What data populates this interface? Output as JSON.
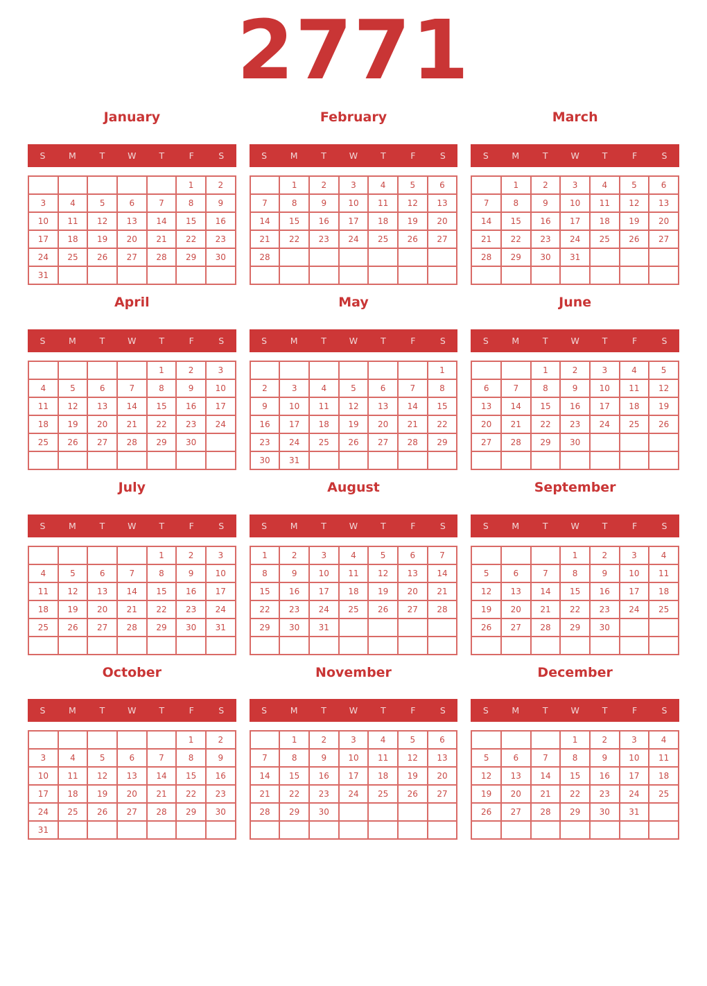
{
  "year_title": "2771",
  "weekdays": [
    "S",
    "M",
    "T",
    "W",
    "T",
    "F",
    "S"
  ],
  "colors": {
    "title_red": "#c93535",
    "weekday_bar_red": "#cd3737",
    "weekday_bar_text": "#f2d9d9",
    "grid_border": "#d96a66",
    "day_number_red": "#c94a46",
    "page_background": "#ffffff"
  },
  "months": [
    {
      "name": "January",
      "rows": [
        [
          "",
          "",
          "",
          "",
          "",
          "1",
          "2"
        ],
        [
          "3",
          "4",
          "5",
          "6",
          "7",
          "8",
          "9"
        ],
        [
          "10",
          "11",
          "12",
          "13",
          "14",
          "15",
          "16"
        ],
        [
          "17",
          "18",
          "19",
          "20",
          "21",
          "22",
          "23"
        ],
        [
          "24",
          "25",
          "26",
          "27",
          "28",
          "29",
          "30"
        ],
        [
          "31",
          "",
          "",
          "",
          "",
          "",
          ""
        ]
      ]
    },
    {
      "name": "February",
      "rows": [
        [
          "",
          "1",
          "2",
          "3",
          "4",
          "5",
          "6"
        ],
        [
          "7",
          "8",
          "9",
          "10",
          "11",
          "12",
          "13"
        ],
        [
          "14",
          "15",
          "16",
          "17",
          "18",
          "19",
          "20"
        ],
        [
          "21",
          "22",
          "23",
          "24",
          "25",
          "26",
          "27"
        ],
        [
          "28",
          "",
          "",
          "",
          "",
          "",
          ""
        ],
        [
          "",
          "",
          "",
          "",
          "",
          "",
          ""
        ]
      ]
    },
    {
      "name": "March",
      "rows": [
        [
          "",
          "1",
          "2",
          "3",
          "4",
          "5",
          "6"
        ],
        [
          "7",
          "8",
          "9",
          "10",
          "11",
          "12",
          "13"
        ],
        [
          "14",
          "15",
          "16",
          "17",
          "18",
          "19",
          "20"
        ],
        [
          "21",
          "22",
          "23",
          "24",
          "25",
          "26",
          "27"
        ],
        [
          "28",
          "29",
          "30",
          "31",
          "",
          "",
          ""
        ],
        [
          "",
          "",
          "",
          "",
          "",
          "",
          ""
        ]
      ]
    },
    {
      "name": "April",
      "rows": [
        [
          "",
          "",
          "",
          "",
          "1",
          "2",
          "3"
        ],
        [
          "4",
          "5",
          "6",
          "7",
          "8",
          "9",
          "10"
        ],
        [
          "11",
          "12",
          "13",
          "14",
          "15",
          "16",
          "17"
        ],
        [
          "18",
          "19",
          "20",
          "21",
          "22",
          "23",
          "24"
        ],
        [
          "25",
          "26",
          "27",
          "28",
          "29",
          "30",
          ""
        ],
        [
          "",
          "",
          "",
          "",
          "",
          "",
          ""
        ]
      ]
    },
    {
      "name": "May",
      "rows": [
        [
          "",
          "",
          "",
          "",
          "",
          "",
          "1"
        ],
        [
          "2",
          "3",
          "4",
          "5",
          "6",
          "7",
          "8"
        ],
        [
          "9",
          "10",
          "11",
          "12",
          "13",
          "14",
          "15"
        ],
        [
          "16",
          "17",
          "18",
          "19",
          "20",
          "21",
          "22"
        ],
        [
          "23",
          "24",
          "25",
          "26",
          "27",
          "28",
          "29"
        ],
        [
          "30",
          "31",
          "",
          "",
          "",
          "",
          ""
        ]
      ]
    },
    {
      "name": "June",
      "rows": [
        [
          "",
          "",
          "1",
          "2",
          "3",
          "4",
          "5"
        ],
        [
          "6",
          "7",
          "8",
          "9",
          "10",
          "11",
          "12"
        ],
        [
          "13",
          "14",
          "15",
          "16",
          "17",
          "18",
          "19"
        ],
        [
          "20",
          "21",
          "22",
          "23",
          "24",
          "25",
          "26"
        ],
        [
          "27",
          "28",
          "29",
          "30",
          "",
          "",
          ""
        ],
        [
          "",
          "",
          "",
          "",
          "",
          "",
          ""
        ]
      ]
    },
    {
      "name": "July",
      "rows": [
        [
          "",
          "",
          "",
          "",
          "1",
          "2",
          "3"
        ],
        [
          "4",
          "5",
          "6",
          "7",
          "8",
          "9",
          "10"
        ],
        [
          "11",
          "12",
          "13",
          "14",
          "15",
          "16",
          "17"
        ],
        [
          "18",
          "19",
          "20",
          "21",
          "22",
          "23",
          "24"
        ],
        [
          "25",
          "26",
          "27",
          "28",
          "29",
          "30",
          "31"
        ],
        [
          "",
          "",
          "",
          "",
          "",
          "",
          ""
        ]
      ]
    },
    {
      "name": "August",
      "rows": [
        [
          "1",
          "2",
          "3",
          "4",
          "5",
          "6",
          "7"
        ],
        [
          "8",
          "9",
          "10",
          "11",
          "12",
          "13",
          "14"
        ],
        [
          "15",
          "16",
          "17",
          "18",
          "19",
          "20",
          "21"
        ],
        [
          "22",
          "23",
          "24",
          "25",
          "26",
          "27",
          "28"
        ],
        [
          "29",
          "30",
          "31",
          "",
          "",
          "",
          ""
        ],
        [
          "",
          "",
          "",
          "",
          "",
          "",
          ""
        ]
      ]
    },
    {
      "name": "September",
      "rows": [
        [
          "",
          "",
          "",
          "1",
          "2",
          "3",
          "4"
        ],
        [
          "5",
          "6",
          "7",
          "8",
          "9",
          "10",
          "11"
        ],
        [
          "12",
          "13",
          "14",
          "15",
          "16",
          "17",
          "18"
        ],
        [
          "19",
          "20",
          "21",
          "22",
          "23",
          "24",
          "25"
        ],
        [
          "26",
          "27",
          "28",
          "29",
          "30",
          "",
          ""
        ],
        [
          "",
          "",
          "",
          "",
          "",
          "",
          ""
        ]
      ]
    },
    {
      "name": "October",
      "rows": [
        [
          "",
          "",
          "",
          "",
          "",
          "1",
          "2"
        ],
        [
          "3",
          "4",
          "5",
          "6",
          "7",
          "8",
          "9"
        ],
        [
          "10",
          "11",
          "12",
          "13",
          "14",
          "15",
          "16"
        ],
        [
          "17",
          "18",
          "19",
          "20",
          "21",
          "22",
          "23"
        ],
        [
          "24",
          "25",
          "26",
          "27",
          "28",
          "29",
          "30"
        ],
        [
          "31",
          "",
          "",
          "",
          "",
          "",
          ""
        ]
      ]
    },
    {
      "name": "November",
      "rows": [
        [
          "",
          "1",
          "2",
          "3",
          "4",
          "5",
          "6"
        ],
        [
          "7",
          "8",
          "9",
          "10",
          "11",
          "12",
          "13"
        ],
        [
          "14",
          "15",
          "16",
          "17",
          "18",
          "19",
          "20"
        ],
        [
          "21",
          "22",
          "23",
          "24",
          "25",
          "26",
          "27"
        ],
        [
          "28",
          "29",
          "30",
          "",
          "",
          "",
          ""
        ],
        [
          "",
          "",
          "",
          "",
          "",
          "",
          ""
        ]
      ]
    },
    {
      "name": "December",
      "rows": [
        [
          "",
          "",
          "",
          "1",
          "2",
          "3",
          "4"
        ],
        [
          "5",
          "6",
          "7",
          "8",
          "9",
          "10",
          "11"
        ],
        [
          "12",
          "13",
          "14",
          "15",
          "16",
          "17",
          "18"
        ],
        [
          "19",
          "20",
          "21",
          "22",
          "23",
          "24",
          "25"
        ],
        [
          "26",
          "27",
          "28",
          "29",
          "30",
          "31",
          ""
        ],
        [
          "",
          "",
          "",
          "",
          "",
          "",
          ""
        ]
      ]
    }
  ]
}
